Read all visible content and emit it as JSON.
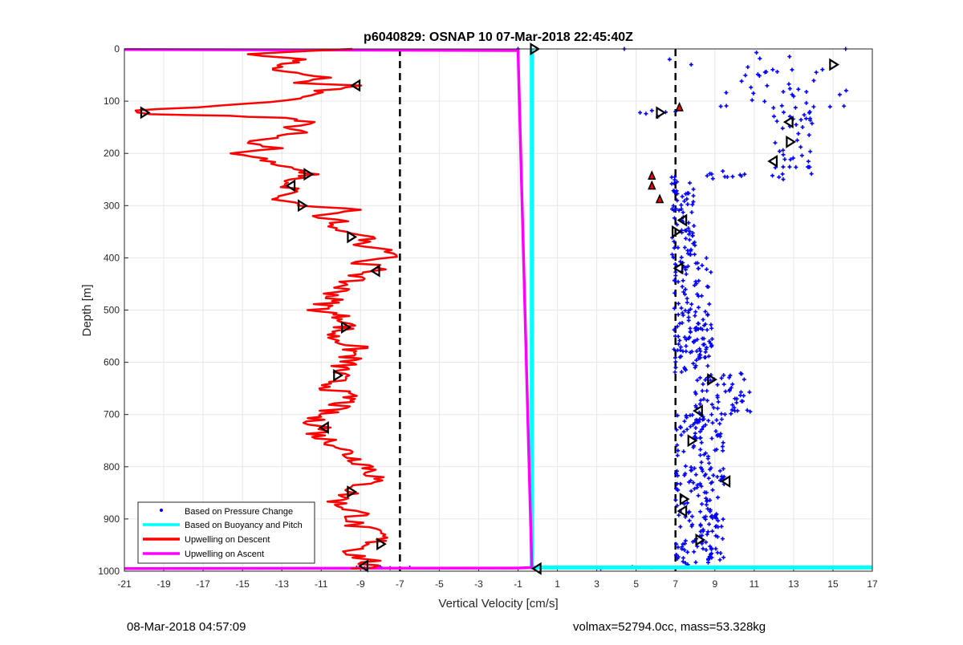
{
  "chart_data": {
    "type": "line",
    "title": "p6040829: OSNAP 10 07-Mar-2018 22:45:40Z",
    "xlabel": "Vertical Velocity [cm/s]",
    "ylabel": "Depth [m]",
    "xlim": [
      -21,
      17
    ],
    "ylim": [
      0,
      1000
    ],
    "y_reversed": true,
    "grid": true,
    "x_ticks": [
      -21,
      -19,
      -17,
      -15,
      -13,
      -11,
      -9,
      -7,
      -5,
      -3,
      -1,
      1,
      3,
      5,
      7,
      9,
      11,
      13,
      15,
      17
    ],
    "y_ticks": [
      0,
      100,
      200,
      300,
      400,
      500,
      600,
      700,
      800,
      900,
      1000
    ],
    "legend_location": "bottom-left",
    "legend": [
      {
        "label": "Based on Pressure Change",
        "color": "#0000ff",
        "style": "marker"
      },
      {
        "label": "Based on Buoyancy and Pitch",
        "color": "#00ffff",
        "style": "line"
      },
      {
        "label": "Upwelling on Descent",
        "color": "#ff0000",
        "style": "line"
      },
      {
        "label": "Upwelling on Ascent",
        "color": "#ff00ff",
        "style": "line"
      }
    ],
    "reference_lines_x": [
      -7,
      7
    ],
    "series": [
      {
        "name": "Upwelling on Descent",
        "color": "#ff0000",
        "points": [
          [
            -9.8,
            0
          ],
          [
            -14.5,
            10
          ],
          [
            -12,
            20
          ],
          [
            -13.8,
            40
          ],
          [
            -10.5,
            55
          ],
          [
            -12.5,
            65
          ],
          [
            -9.2,
            70
          ],
          [
            -11,
            80
          ],
          [
            -12,
            95
          ],
          [
            -15,
            105
          ],
          [
            -17.5,
            112
          ],
          [
            -20.5,
            118
          ],
          [
            -20,
            125
          ],
          [
            -16,
            128
          ],
          [
            -13,
            132
          ],
          [
            -11.5,
            140
          ],
          [
            -12.5,
            150
          ],
          [
            -11.8,
            160
          ],
          [
            -13.5,
            170
          ],
          [
            -14.8,
            180
          ],
          [
            -13,
            190
          ],
          [
            -15.5,
            200
          ],
          [
            -14,
            210
          ],
          [
            -13.5,
            220
          ],
          [
            -12.5,
            230
          ],
          [
            -11.5,
            240
          ],
          [
            -12.5,
            250
          ],
          [
            -13,
            262
          ],
          [
            -12.2,
            270
          ],
          [
            -13.5,
            285
          ],
          [
            -12,
            300
          ],
          [
            -9,
            308
          ],
          [
            -11.5,
            320
          ],
          [
            -10,
            330
          ],
          [
            -11,
            340
          ],
          [
            -9.5,
            350
          ],
          [
            -8.5,
            360
          ],
          [
            -9,
            375
          ],
          [
            -7.5,
            385
          ],
          [
            -7,
            398
          ],
          [
            -9,
            405
          ],
          [
            -8.2,
            425
          ],
          [
            -9.5,
            440
          ],
          [
            -10,
            460
          ],
          [
            -10.5,
            480
          ],
          [
            -11,
            500
          ],
          [
            -9.5,
            520
          ],
          [
            -9.8,
            533
          ],
          [
            -10.5,
            550
          ],
          [
            -9.3,
            570
          ],
          [
            -9.5,
            590
          ],
          [
            -10,
            610
          ],
          [
            -10.2,
            625
          ],
          [
            -10.5,
            650
          ],
          [
            -9.5,
            670
          ],
          [
            -10.5,
            690
          ],
          [
            -11.5,
            710
          ],
          [
            -10.8,
            725
          ],
          [
            -11.2,
            740
          ],
          [
            -10,
            760
          ],
          [
            -9.5,
            780
          ],
          [
            -8.5,
            800
          ],
          [
            -8.2,
            820
          ],
          [
            -9.5,
            848
          ],
          [
            -10.2,
            870
          ],
          [
            -9,
            890
          ],
          [
            -9.5,
            910
          ],
          [
            -8,
            930
          ],
          [
            -8.3,
            948
          ],
          [
            -9.5,
            965
          ],
          [
            -8.5,
            980
          ],
          [
            -8.8,
            992
          ],
          [
            -9.5,
            995
          ]
        ]
      },
      {
        "name": "Upwelling on Ascent",
        "color": "#ff00ff",
        "points": [
          [
            -21,
            995
          ],
          [
            -1,
            994
          ],
          [
            -0.3,
            993
          ],
          [
            -1,
            3
          ],
          [
            -21,
            1
          ]
        ]
      },
      {
        "name": "Based on Buoyancy and Pitch",
        "color": "#00ffff",
        "points": [
          [
            -0.3,
            0
          ],
          [
            -0.3,
            993
          ],
          [
            17,
            993
          ]
        ]
      },
      {
        "name": "Based on Pressure Change",
        "color": "#0000ff",
        "style": "scatter",
        "cloud_segments": [
          {
            "d0": 0,
            "d1": 120,
            "v0": 9.2,
            "v1": 16.2,
            "n": 40
          },
          {
            "d0": 120,
            "d1": 240,
            "v0": 12,
            "v1": 14,
            "n": 40
          },
          {
            "d0": 230,
            "d1": 250,
            "v0": 8,
            "v1": 12.5,
            "n": 14
          },
          {
            "d0": 245,
            "d1": 400,
            "v0": 6.8,
            "v1": 8,
            "n": 70
          },
          {
            "d0": 400,
            "d1": 620,
            "v0": 6.9,
            "v1": 8.9,
            "n": 140
          },
          {
            "d0": 620,
            "d1": 700,
            "v0": 8,
            "v1": 10.8,
            "n": 60
          },
          {
            "d0": 700,
            "d1": 990,
            "v0": 7,
            "v1": 9.5,
            "n": 220
          }
        ],
        "points": [
          [
            4.4,
            0
          ],
          [
            6.7,
            20
          ],
          [
            7.8,
            30
          ],
          [
            7,
            120
          ],
          [
            5.2,
            122
          ],
          [
            5.5,
            124
          ],
          [
            5.8,
            118
          ],
          [
            6.1,
            130
          ],
          [
            6.5,
            121
          ],
          [
            9.3,
            110
          ],
          [
            5.8,
            993
          ],
          [
            4.8,
            992
          ],
          [
            3.2,
            995
          ],
          [
            -1,
            0
          ],
          [
            -6.5,
            993
          ],
          [
            -7.5,
            994
          ],
          [
            -8,
            992
          ],
          [
            -8.3,
            993
          ],
          [
            -8.8,
            994
          ],
          [
            -9.2,
            993
          ]
        ]
      }
    ],
    "markers_descent": [
      [
        -0.2,
        0
      ],
      [
        -9.2,
        70
      ],
      [
        -20,
        122
      ],
      [
        -11.7,
        240
      ],
      [
        -12.5,
        262
      ],
      [
        -12,
        300
      ],
      [
        -9.5,
        360
      ],
      [
        -8.2,
        425
      ],
      [
        -9.8,
        533
      ],
      [
        -10.2,
        625
      ],
      [
        -10.8,
        725
      ],
      [
        -9.5,
        848
      ],
      [
        -8,
        948
      ],
      [
        -8.8,
        990
      ]
    ],
    "markers_pressure": [
      [
        15,
        30
      ],
      [
        7.2,
        112
      ],
      [
        6.2,
        122
      ],
      [
        12.8,
        140
      ],
      [
        12.8,
        178
      ],
      [
        12,
        215
      ],
      [
        5.8,
        243
      ],
      [
        5.8,
        262
      ],
      [
        6.2,
        288
      ],
      [
        7.4,
        328
      ],
      [
        7,
        350
      ],
      [
        7.2,
        420
      ],
      [
        8.8,
        633
      ],
      [
        8.2,
        693
      ],
      [
        7.8,
        750
      ],
      [
        9.6,
        828
      ],
      [
        7.4,
        862
      ],
      [
        7.4,
        885
      ],
      [
        8.2,
        940
      ],
      [
        0,
        995
      ]
    ],
    "footer_left": "08-Mar-2018 04:57:09",
    "footer_right": "volmax=52794.0cc, mass=53.328kg"
  }
}
